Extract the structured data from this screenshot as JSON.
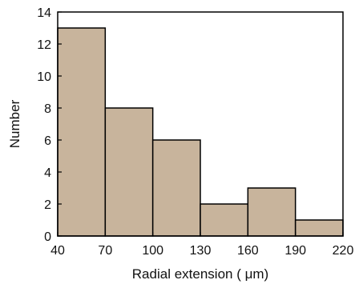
{
  "chart_data": {
    "type": "bar",
    "title": "",
    "xlabel": "Radial extension ( μm)",
    "ylabel": "Number",
    "xlim": [
      40,
      220
    ],
    "ylim": [
      0,
      14
    ],
    "bin_edges": [
      40,
      70,
      100,
      130,
      160,
      190,
      220
    ],
    "values": [
      13,
      8,
      6,
      2,
      3,
      1
    ],
    "x_ticks": [
      40,
      70,
      100,
      130,
      160,
      190,
      220
    ],
    "y_ticks": [
      0,
      2,
      4,
      6,
      8,
      10,
      12,
      14
    ],
    "bar_color": "#c8b49c",
    "edge_color": "#000000",
    "grid": false,
    "legend": "none"
  }
}
